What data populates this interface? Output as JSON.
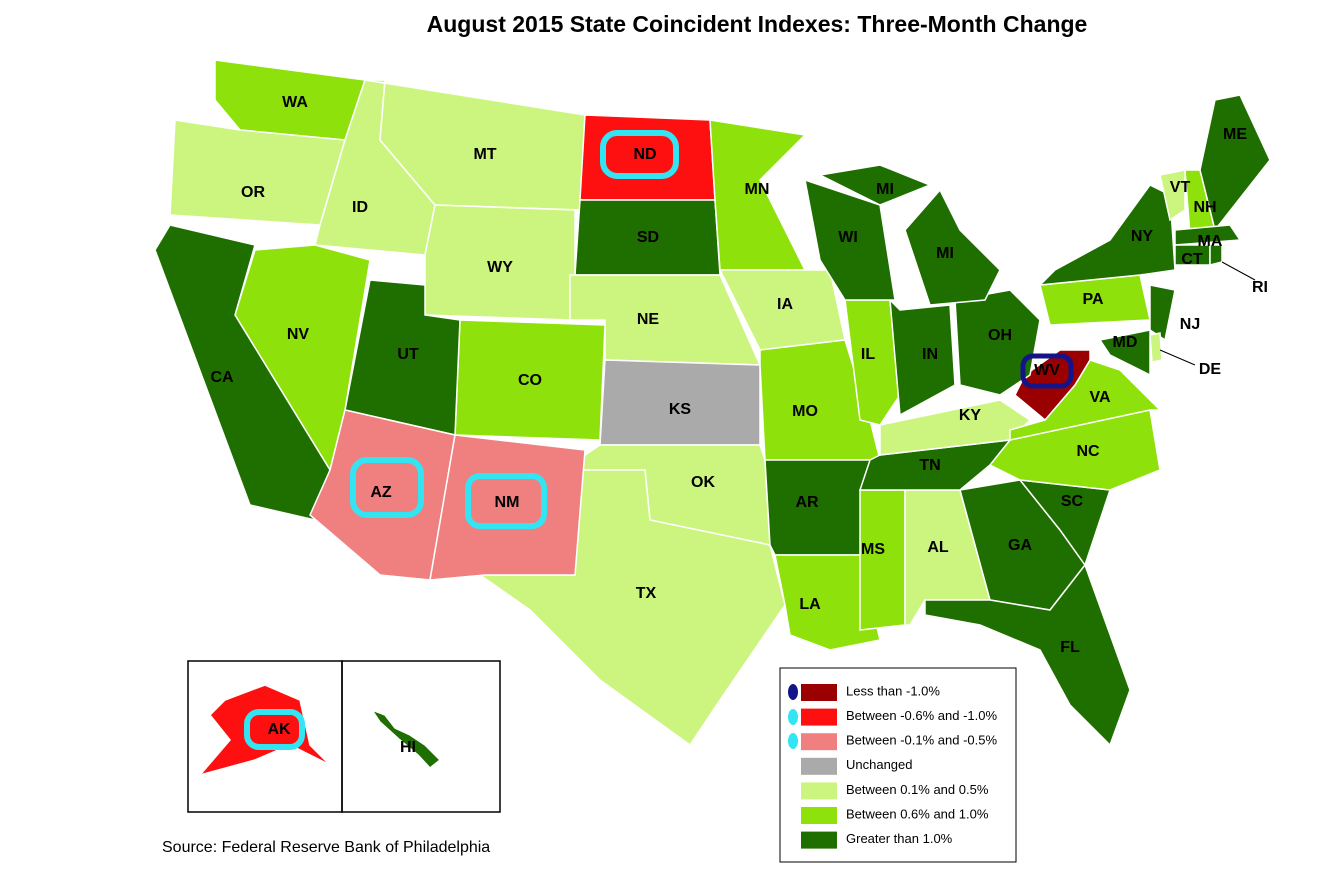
{
  "title": "August 2015 State Coincident Indexes: Three-Month Change",
  "states": [
    {
      "label": "WA",
      "color": "#8ee10a"
    },
    {
      "label": "OR",
      "color": "#ccf580"
    },
    {
      "label": "ID",
      "color": "#ccf580"
    },
    {
      "label": "MT",
      "color": "#ccf580"
    },
    {
      "label": "ND",
      "color": "#ff1010"
    },
    {
      "label": "SD",
      "color": "#1f6e00"
    },
    {
      "label": "WY",
      "color": "#ccf580"
    },
    {
      "label": "NE",
      "color": "#ccf580"
    },
    {
      "label": "KS",
      "color": "#aaaaaa"
    },
    {
      "label": "OK",
      "color": "#ccf580"
    },
    {
      "label": "TX",
      "color": "#ccf580"
    },
    {
      "label": "MN",
      "color": "#8ee10a"
    },
    {
      "label": "IA",
      "color": "#ccf580"
    },
    {
      "label": "MO",
      "color": "#8ee10a"
    },
    {
      "label": "AR",
      "color": "#1f6e00"
    },
    {
      "label": "LA",
      "color": "#8ee10a"
    },
    {
      "label": "MS",
      "color": "#8ee10a"
    },
    {
      "label": "AL",
      "color": "#ccf580"
    },
    {
      "label": "GA",
      "color": "#1f6e00"
    },
    {
      "label": "FL",
      "color": "#1f6e00"
    },
    {
      "label": "SC",
      "color": "#1f6e00"
    },
    {
      "label": "NC",
      "color": "#8ee10a"
    },
    {
      "label": "TN",
      "color": "#1f6e00"
    },
    {
      "label": "KY",
      "color": "#ccf580"
    },
    {
      "label": "VA",
      "color": "#8ee10a"
    },
    {
      "label": "WV",
      "color": "#9a0000"
    },
    {
      "label": "IL",
      "color": "#8ee10a"
    },
    {
      "label": "IN",
      "color": "#1f6e00"
    },
    {
      "label": "OH",
      "color": "#1f6e00"
    },
    {
      "label": "MI",
      "color": "#1f6e00"
    },
    {
      "label": "MI",
      "color": "#1f6e00"
    },
    {
      "label": "WI",
      "color": "#1f6e00"
    },
    {
      "label": "PA",
      "color": "#8ee10a"
    },
    {
      "label": "NY",
      "color": "#1f6e00"
    },
    {
      "label": "NJ",
      "color": "#1f6e00"
    },
    {
      "label": "DE",
      "color": "#ccf580"
    },
    {
      "label": "MD",
      "color": "#1f6e00"
    },
    {
      "label": "VT",
      "color": "#ccf580"
    },
    {
      "label": "NH",
      "color": "#8ee10a"
    },
    {
      "label": "ME",
      "color": "#1f6e00"
    },
    {
      "label": "MA",
      "color": "#1f6e00"
    },
    {
      "label": "CT",
      "color": "#1f6e00"
    },
    {
      "label": "RI",
      "color": "#1f6e00"
    },
    {
      "label": "CO",
      "color": "#8ee10a"
    },
    {
      "label": "UT",
      "color": "#1f6e00"
    },
    {
      "label": "NV",
      "color": "#8ee10a"
    },
    {
      "label": "CA",
      "color": "#1f6e00"
    },
    {
      "label": "AZ",
      "color": "#f08080"
    },
    {
      "label": "NM",
      "color": "#f08080"
    },
    {
      "label": "AK",
      "color": "#ff1010"
    },
    {
      "label": "HI",
      "color": "#1f6e00"
    }
  ],
  "legend": [
    {
      "label": "Less than -1.0%",
      "color": "#9a0000"
    },
    {
      "label": "Between -0.6% and -1.0%",
      "color": "#ff1010"
    },
    {
      "label": "Between -0.1% and -0.5%",
      "color": "#f08080"
    },
    {
      "label": "Unchanged",
      "color": "#aaaaaa"
    },
    {
      "label": "Between 0.1% and 0.5%",
      "color": "#ccf580"
    },
    {
      "label": "Between 0.6% and 1.0%",
      "color": "#8ee10a"
    },
    {
      "label": "Greater than 1.0%",
      "color": "#1f6e00"
    }
  ],
  "source": "Source: Federal Reserve Bank of Philadelphia"
}
